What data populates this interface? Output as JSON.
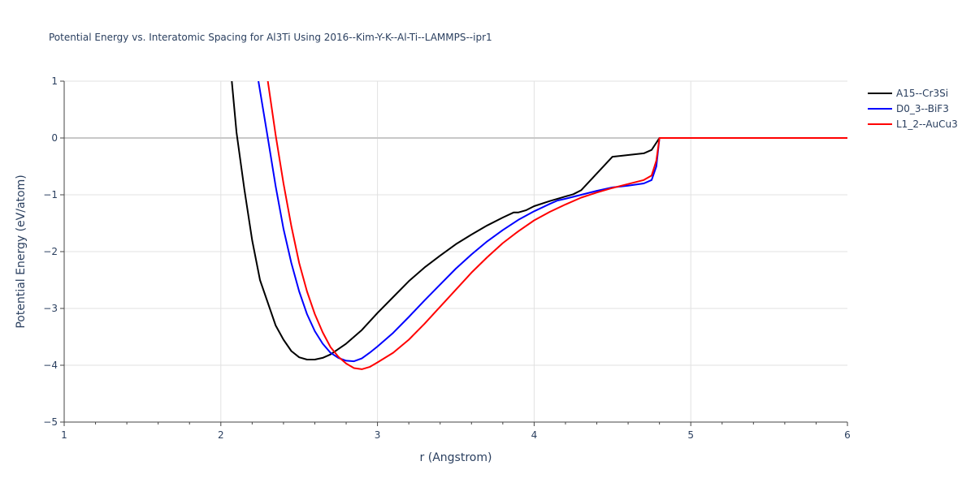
{
  "chart_data": {
    "type": "line",
    "title": "Potential Energy vs. Interatomic Spacing for Al3Ti Using 2016--Kim-Y-K--Al-Ti--LAMMPS--ipr1",
    "xlabel": "r (Angstrom)",
    "ylabel": "Potential Energy (eV/atom)",
    "xlim": [
      1,
      6
    ],
    "ylim": [
      -5,
      1
    ],
    "xticks": [
      1,
      2,
      3,
      4,
      5,
      6
    ],
    "yticks": [
      1,
      0,
      -1,
      -2,
      -3,
      -4,
      -5
    ],
    "xtick_labels": [
      "1",
      "2",
      "3",
      "4",
      "5",
      "6"
    ],
    "ytick_labels": [
      "1",
      "0",
      "−1",
      "−2",
      "−3",
      "−4",
      "−5"
    ],
    "grid": true,
    "legend_position": "top-right",
    "series": [
      {
        "name": "A15--Cr3Si",
        "color": "#000000",
        "points": [
          [
            2.07,
            1.0
          ],
          [
            2.1,
            0.1
          ],
          [
            2.15,
            -0.9
          ],
          [
            2.2,
            -1.8
          ],
          [
            2.25,
            -2.5
          ],
          [
            2.3,
            -2.9
          ],
          [
            2.35,
            -3.3
          ],
          [
            2.4,
            -3.55
          ],
          [
            2.45,
            -3.75
          ],
          [
            2.5,
            -3.86
          ],
          [
            2.55,
            -3.9
          ],
          [
            2.6,
            -3.9
          ],
          [
            2.65,
            -3.87
          ],
          [
            2.7,
            -3.81
          ],
          [
            2.8,
            -3.62
          ],
          [
            2.9,
            -3.38
          ],
          [
            3.0,
            -3.08
          ],
          [
            3.1,
            -2.8
          ],
          [
            3.2,
            -2.52
          ],
          [
            3.3,
            -2.28
          ],
          [
            3.4,
            -2.07
          ],
          [
            3.5,
            -1.87
          ],
          [
            3.6,
            -1.7
          ],
          [
            3.7,
            -1.54
          ],
          [
            3.8,
            -1.4
          ],
          [
            3.87,
            -1.31
          ],
          [
            3.9,
            -1.31
          ],
          [
            3.95,
            -1.27
          ],
          [
            4.0,
            -1.2
          ],
          [
            4.1,
            -1.11
          ],
          [
            4.2,
            -1.03
          ],
          [
            4.25,
            -0.99
          ],
          [
            4.3,
            -0.92
          ],
          [
            4.5,
            -0.33
          ],
          [
            4.6,
            -0.3
          ],
          [
            4.7,
            -0.27
          ],
          [
            4.75,
            -0.21
          ],
          [
            4.8,
            0.0
          ],
          [
            6.0,
            0.0
          ]
        ]
      },
      {
        "name": "D0_3--BiF3",
        "color": "#0000ff",
        "points": [
          [
            2.24,
            1.0
          ],
          [
            2.3,
            0.0
          ],
          [
            2.35,
            -0.85
          ],
          [
            2.4,
            -1.6
          ],
          [
            2.45,
            -2.2
          ],
          [
            2.5,
            -2.7
          ],
          [
            2.55,
            -3.1
          ],
          [
            2.6,
            -3.4
          ],
          [
            2.65,
            -3.62
          ],
          [
            2.7,
            -3.78
          ],
          [
            2.75,
            -3.87
          ],
          [
            2.8,
            -3.92
          ],
          [
            2.85,
            -3.93
          ],
          [
            2.9,
            -3.88
          ],
          [
            2.95,
            -3.78
          ],
          [
            3.0,
            -3.67
          ],
          [
            3.1,
            -3.43
          ],
          [
            3.2,
            -3.15
          ],
          [
            3.3,
            -2.86
          ],
          [
            3.4,
            -2.58
          ],
          [
            3.5,
            -2.3
          ],
          [
            3.6,
            -2.05
          ],
          [
            3.7,
            -1.82
          ],
          [
            3.8,
            -1.62
          ],
          [
            3.9,
            -1.44
          ],
          [
            4.0,
            -1.29
          ],
          [
            4.1,
            -1.16
          ],
          [
            4.15,
            -1.1
          ],
          [
            4.2,
            -1.07
          ],
          [
            4.3,
            -1.0
          ],
          [
            4.4,
            -0.93
          ],
          [
            4.5,
            -0.87
          ],
          [
            4.6,
            -0.84
          ],
          [
            4.7,
            -0.8
          ],
          [
            4.75,
            -0.74
          ],
          [
            4.78,
            -0.5
          ],
          [
            4.8,
            0.0
          ],
          [
            6.0,
            0.0
          ]
        ]
      },
      {
        "name": "L1_2--AuCu3",
        "color": "#ff0000",
        "points": [
          [
            2.3,
            1.0
          ],
          [
            2.35,
            0.05
          ],
          [
            2.4,
            -0.8
          ],
          [
            2.45,
            -1.55
          ],
          [
            2.5,
            -2.2
          ],
          [
            2.55,
            -2.7
          ],
          [
            2.6,
            -3.1
          ],
          [
            2.65,
            -3.42
          ],
          [
            2.7,
            -3.68
          ],
          [
            2.75,
            -3.85
          ],
          [
            2.8,
            -3.97
          ],
          [
            2.85,
            -4.05
          ],
          [
            2.9,
            -4.07
          ],
          [
            2.95,
            -4.03
          ],
          [
            3.0,
            -3.95
          ],
          [
            3.1,
            -3.78
          ],
          [
            3.2,
            -3.55
          ],
          [
            3.3,
            -3.27
          ],
          [
            3.4,
            -2.97
          ],
          [
            3.5,
            -2.67
          ],
          [
            3.6,
            -2.37
          ],
          [
            3.7,
            -2.1
          ],
          [
            3.8,
            -1.85
          ],
          [
            3.9,
            -1.64
          ],
          [
            4.0,
            -1.45
          ],
          [
            4.1,
            -1.3
          ],
          [
            4.2,
            -1.17
          ],
          [
            4.3,
            -1.05
          ],
          [
            4.4,
            -0.96
          ],
          [
            4.5,
            -0.88
          ],
          [
            4.6,
            -0.81
          ],
          [
            4.7,
            -0.74
          ],
          [
            4.75,
            -0.66
          ],
          [
            4.78,
            -0.4
          ],
          [
            4.8,
            0.0
          ],
          [
            6.0,
            0.0
          ]
        ]
      }
    ]
  }
}
